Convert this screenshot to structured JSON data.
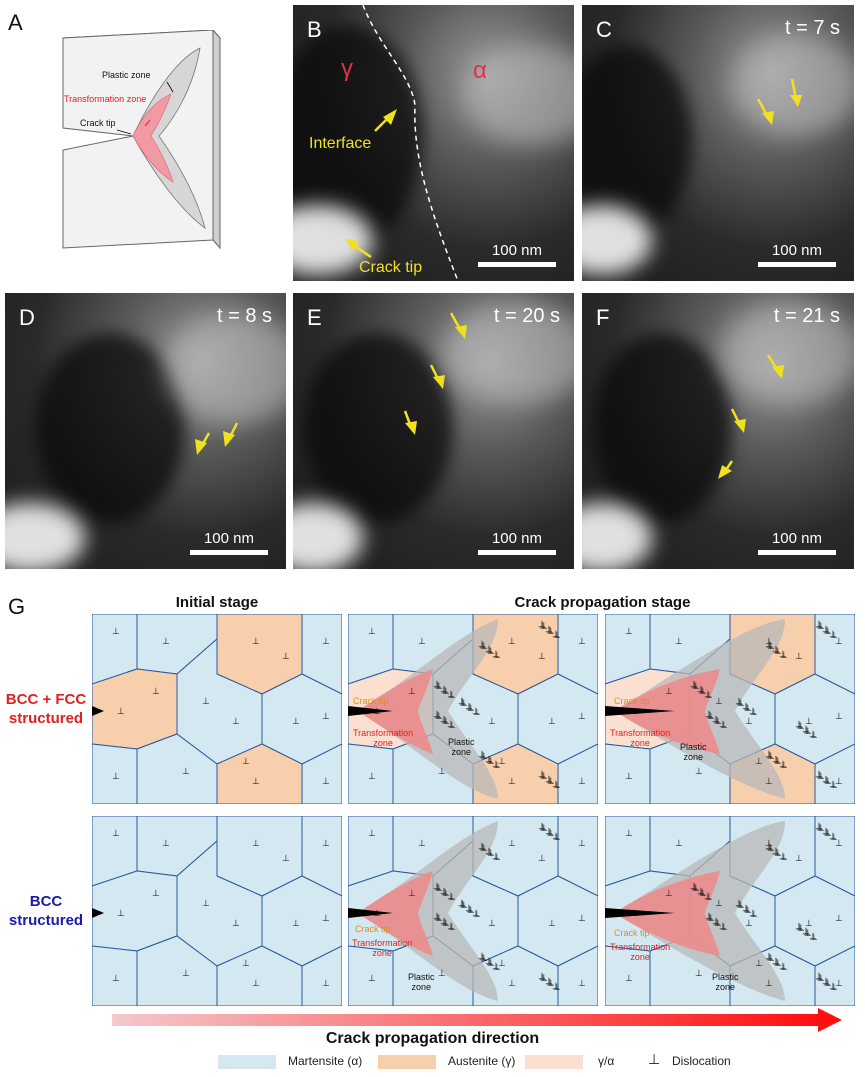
{
  "panels": {
    "A": {
      "letter": "A",
      "labels": {
        "plastic": "Plastic zone",
        "transformation": "Transformation zone",
        "crack_tip": "Crack tip"
      }
    },
    "B": {
      "letter": "B",
      "gamma": "γ",
      "alpha": "α",
      "interface": "Interface",
      "crack_tip": "Crack tip",
      "scale": "100 nm"
    },
    "C": {
      "letter": "C",
      "time": "t = 7 s",
      "scale": "100 nm"
    },
    "D": {
      "letter": "D",
      "time": "t = 8 s",
      "scale": "100 nm"
    },
    "E": {
      "letter": "E",
      "time": "t = 20 s",
      "scale": "100 nm"
    },
    "F": {
      "letter": "F",
      "time": "t = 21 s",
      "scale": "100 nm"
    },
    "G": {
      "letter": "G",
      "col_initial": "Initial stage",
      "col_propagation": "Crack propagation stage",
      "row1_line1": "BCC + FCC",
      "row1_line2": "structured",
      "row2_line1": "BCC",
      "row2_line2": "structured",
      "crack_tip": "Crack tip",
      "transformation": "Transformation",
      "zone": "zone",
      "plastic": "Plastic",
      "direction": "Crack propagation direction"
    }
  },
  "legend": [
    {
      "label": "Martensite (α)",
      "color": "#d3e8f0"
    },
    {
      "label": "Austenite (γ)",
      "color": "#f8cfad"
    },
    {
      "label": "γ/α",
      "color": "#fbe0d2"
    },
    {
      "label": "Dislocation",
      "symbol": "⊥"
    }
  ],
  "colors": {
    "martensite": "#d3e8f0",
    "austenite": "#f8cfad",
    "gamma_alpha": "#fbe0d2",
    "transformation": "#ee8888",
    "plastic": "#b8b8b8",
    "red_label": "#e02020",
    "blue_label": "#1a1ab0",
    "arrow_yellow": "#f0e020",
    "crack_tip_orange": "#e0a020"
  }
}
